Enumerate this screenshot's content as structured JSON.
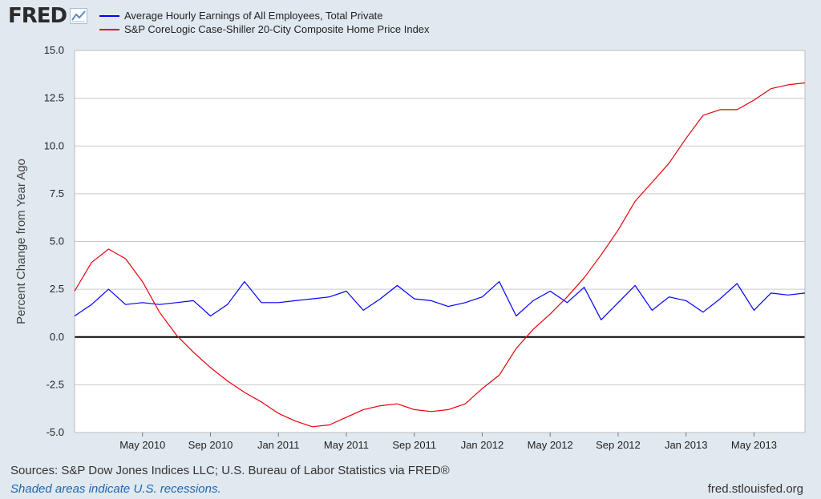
{
  "header": {
    "logo": "FRED",
    "logo_icon": "line-graph-icon"
  },
  "colors": {
    "series1": "#0000ff",
    "series2": "#e8000b",
    "zero_line": "#000000",
    "background": "#e1e9f0",
    "plot_background": "#ffffff",
    "grid": "#c9c9c9"
  },
  "footer": {
    "sources": "Sources: S&P Dow Jones Indices LLC; U.S. Bureau of Labor Statistics via FRED®",
    "recession_note": "Shaded areas indicate U.S. recessions.",
    "url": "fred.stlouisfed.org"
  },
  "chart_data": {
    "type": "line",
    "title": "",
    "ylabel": "Percent Change from Year Ago",
    "xlabel": "",
    "ylim": [
      -5.0,
      15.0
    ],
    "yticks": [
      15.0,
      12.5,
      10.0,
      7.5,
      5.0,
      2.5,
      0.0,
      -2.5,
      -5.0
    ],
    "ytick_labels": [
      "15.0",
      "12.5",
      "10.0",
      "7.5",
      "5.0",
      "2.5",
      "0.0",
      "-2.5",
      "-5.0"
    ],
    "xlim": [
      "2010-01",
      "2013-08"
    ],
    "xticks": [
      "2010-05",
      "2010-09",
      "2011-01",
      "2011-05",
      "2011-09",
      "2012-01",
      "2012-05",
      "2012-09",
      "2013-01",
      "2013-05"
    ],
    "xtick_labels": [
      "May 2010",
      "Sep 2010",
      "Jan 2011",
      "May 2011",
      "Sep 2011",
      "Jan 2012",
      "May 2012",
      "Sep 2012",
      "Jan 2013",
      "May 2013"
    ],
    "grid": true,
    "legend_position": "top-left",
    "x": [
      "2010-01",
      "2010-02",
      "2010-03",
      "2010-04",
      "2010-05",
      "2010-06",
      "2010-07",
      "2010-08",
      "2010-09",
      "2010-10",
      "2010-11",
      "2010-12",
      "2011-01",
      "2011-02",
      "2011-03",
      "2011-04",
      "2011-05",
      "2011-06",
      "2011-07",
      "2011-08",
      "2011-09",
      "2011-10",
      "2011-11",
      "2011-12",
      "2012-01",
      "2012-02",
      "2012-03",
      "2012-04",
      "2012-05",
      "2012-06",
      "2012-07",
      "2012-08",
      "2012-09",
      "2012-10",
      "2012-11",
      "2012-12",
      "2013-01",
      "2013-02",
      "2013-03",
      "2013-04",
      "2013-05",
      "2013-06",
      "2013-07",
      "2013-08"
    ],
    "series": [
      {
        "name": "Average Hourly Earnings of All Employees, Total Private",
        "color": "#0000ff",
        "values": [
          1.1,
          1.7,
          2.5,
          1.7,
          1.8,
          1.7,
          1.8,
          1.9,
          1.1,
          1.7,
          2.9,
          1.8,
          1.8,
          1.9,
          2.0,
          2.1,
          2.4,
          1.4,
          2.0,
          2.7,
          2.0,
          1.9,
          1.6,
          1.8,
          2.1,
          2.9,
          1.1,
          1.9,
          2.4,
          1.8,
          2.6,
          0.9,
          1.8,
          2.7,
          1.4,
          2.1,
          1.9,
          1.3,
          2.0,
          2.8,
          1.4,
          2.3,
          2.2,
          2.3
        ]
      },
      {
        "name": "S&P CoreLogic Case-Shiller 20-City Composite Home Price Index",
        "color": "#e8000b",
        "values": [
          2.4,
          3.9,
          4.6,
          4.1,
          2.9,
          1.3,
          0.1,
          -0.8,
          -1.6,
          -2.3,
          -2.9,
          -3.4,
          -4.0,
          -4.4,
          -4.7,
          -4.6,
          -4.2,
          -3.8,
          -3.6,
          -3.5,
          -3.8,
          -3.9,
          -3.8,
          -3.5,
          -2.7,
          -2.0,
          -0.6,
          0.4,
          1.2,
          2.1,
          3.1,
          4.3,
          5.6,
          7.1,
          8.1,
          9.1,
          10.4,
          11.6,
          11.9,
          11.9,
          12.4,
          13.0,
          13.2,
          13.3
        ]
      }
    ]
  }
}
